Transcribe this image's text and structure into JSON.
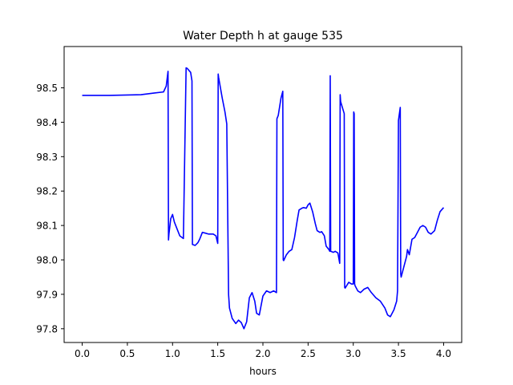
{
  "chart_data": {
    "type": "line",
    "title": "Water Depth h at gauge 535",
    "xlabel": "hours",
    "ylabel": "",
    "xlim": [
      -0.2,
      4.2
    ],
    "ylim": [
      97.76,
      98.62
    ],
    "xticks": [
      0.0,
      0.5,
      1.0,
      1.5,
      2.0,
      2.5,
      3.0,
      3.5,
      4.0
    ],
    "xtick_labels": [
      "0.0",
      "0.5",
      "1.0",
      "1.5",
      "2.0",
      "2.5",
      "3.0",
      "3.5",
      "4.0"
    ],
    "yticks": [
      97.8,
      97.9,
      98.0,
      98.1,
      98.2,
      98.3,
      98.4,
      98.5
    ],
    "ytick_labels": [
      "97.8",
      "97.9",
      "98.0",
      "98.1",
      "98.2",
      "98.3",
      "98.4",
      "98.5"
    ],
    "grid": false,
    "line_color": "#0000ff",
    "series": [
      {
        "x": [
          0.0,
          0.3,
          0.65,
          0.8,
          0.9,
          0.93,
          0.95,
          0.955,
          0.96,
          0.98,
          1.0,
          1.02,
          1.05,
          1.08,
          1.12,
          1.15,
          1.155,
          1.16,
          1.2,
          1.215,
          1.22,
          1.25,
          1.28,
          1.3,
          1.33,
          1.36,
          1.4,
          1.45,
          1.48,
          1.5,
          1.505,
          1.51,
          1.55,
          1.58,
          1.6,
          1.62,
          1.625,
          1.63,
          1.66,
          1.7,
          1.73,
          1.76,
          1.79,
          1.82,
          1.85,
          1.88,
          1.91,
          1.93,
          1.96,
          2.0,
          2.04,
          2.08,
          2.12,
          2.15,
          2.155,
          2.17,
          2.2,
          2.22,
          2.225,
          2.23,
          2.26,
          2.29,
          2.32,
          2.35,
          2.38,
          2.4,
          2.43,
          2.45,
          2.48,
          2.5,
          2.52,
          2.55,
          2.58,
          2.6,
          2.63,
          2.65,
          2.68,
          2.7,
          2.73,
          2.74,
          2.745,
          2.75,
          2.78,
          2.8,
          2.83,
          2.85,
          2.855,
          2.86,
          2.9,
          2.905,
          2.91,
          2.95,
          2.98,
          3.0,
          3.005,
          3.01,
          3.015,
          3.02,
          3.05,
          3.08,
          3.12,
          3.16,
          3.2,
          3.25,
          3.3,
          3.35,
          3.38,
          3.41,
          3.45,
          3.48,
          3.49,
          3.5,
          3.52,
          3.525,
          3.53,
          3.56,
          3.59,
          3.6,
          3.62,
          3.65,
          3.68,
          3.71,
          3.74,
          3.77,
          3.8,
          3.83,
          3.86,
          3.9,
          3.93,
          3.96,
          4.0
        ],
        "values": [
          98.478,
          98.478,
          98.48,
          98.485,
          98.488,
          98.505,
          98.548,
          98.058,
          98.075,
          98.12,
          98.132,
          98.11,
          98.09,
          98.07,
          98.062,
          98.558,
          98.557,
          98.557,
          98.545,
          98.52,
          98.045,
          98.042,
          98.05,
          98.06,
          98.08,
          98.078,
          98.075,
          98.075,
          98.07,
          98.048,
          98.54,
          98.53,
          98.47,
          98.43,
          98.395,
          97.9,
          97.88,
          97.86,
          97.83,
          97.815,
          97.825,
          97.818,
          97.8,
          97.82,
          97.89,
          97.905,
          97.88,
          97.845,
          97.84,
          97.895,
          97.91,
          97.905,
          97.91,
          97.905,
          98.41,
          98.42,
          98.47,
          98.49,
          98.0,
          97.998,
          98.015,
          98.025,
          98.03,
          98.065,
          98.115,
          98.145,
          98.15,
          98.152,
          98.15,
          98.16,
          98.165,
          98.14,
          98.105,
          98.085,
          98.08,
          98.082,
          98.07,
          98.04,
          98.03,
          98.025,
          98.535,
          98.025,
          98.022,
          98.025,
          98.02,
          97.99,
          98.48,
          98.46,
          98.425,
          97.92,
          97.918,
          97.935,
          97.93,
          97.93,
          98.43,
          98.425,
          97.93,
          97.925,
          97.91,
          97.905,
          97.915,
          97.92,
          97.905,
          97.89,
          97.88,
          97.86,
          97.84,
          97.835,
          97.855,
          97.88,
          97.91,
          98.405,
          98.443,
          97.96,
          97.95,
          97.98,
          98.01,
          98.03,
          98.015,
          98.06,
          98.065,
          98.08,
          98.095,
          98.1,
          98.095,
          98.08,
          98.075,
          98.085,
          98.115,
          98.14,
          98.152
        ]
      }
    ]
  }
}
